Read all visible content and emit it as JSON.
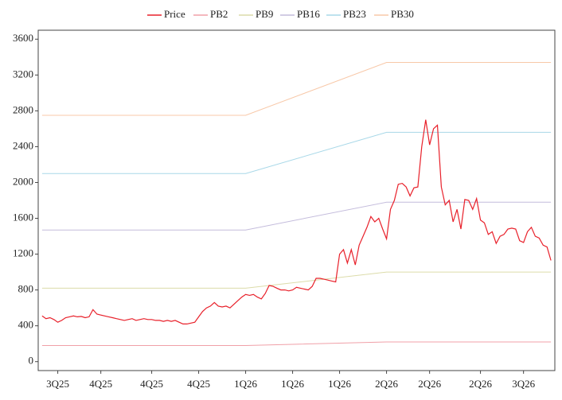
{
  "chart_data": {
    "type": "line",
    "xlim": [
      -1,
      131
    ],
    "xticks": [
      {
        "value": 4,
        "label": "3Q25"
      },
      {
        "value": 15,
        "label": "4Q25"
      },
      {
        "value": 28,
        "label": "4Q25"
      },
      {
        "value": 40,
        "label": "4Q25"
      },
      {
        "value": 52,
        "label": "1Q26"
      },
      {
        "value": 64,
        "label": "1Q26"
      },
      {
        "value": 76,
        "label": "1Q26"
      },
      {
        "value": 88,
        "label": "2Q26"
      },
      {
        "value": 99,
        "label": "2Q26"
      },
      {
        "value": 112,
        "label": "2Q26"
      },
      {
        "value": 123,
        "label": "3Q26"
      }
    ],
    "ylim": [
      -100,
      3700
    ],
    "yticks": [
      0,
      400,
      800,
      1200,
      1600,
      2000,
      2400,
      2800,
      3200,
      3600
    ],
    "legend": "top",
    "series": [
      {
        "name": "Price",
        "color": "#e8202a",
        "x": [
          0,
          1,
          2,
          3,
          4,
          5,
          6,
          7,
          8,
          9,
          10,
          11,
          12,
          13,
          14,
          15,
          16,
          17,
          18,
          19,
          20,
          21,
          22,
          23,
          24,
          25,
          26,
          27,
          28,
          29,
          30,
          31,
          32,
          33,
          34,
          35,
          36,
          37,
          38,
          39,
          40,
          41,
          42,
          43,
          44,
          45,
          46,
          47,
          48,
          49,
          50,
          51,
          52,
          53,
          54,
          55,
          56,
          57,
          58,
          59,
          60,
          61,
          62,
          63,
          64,
          65,
          66,
          67,
          68,
          69,
          70,
          71,
          72,
          73,
          74,
          75,
          76,
          77,
          78,
          79,
          80,
          81,
          82,
          83,
          84,
          85,
          86,
          87,
          88,
          89,
          90,
          91,
          92,
          93,
          94,
          95,
          96,
          97,
          98,
          99,
          100,
          101,
          102,
          103,
          104,
          105,
          106,
          107,
          108,
          109,
          110,
          111,
          112,
          113,
          114,
          115,
          116,
          117,
          118,
          119,
          120,
          121,
          122,
          123,
          124,
          125,
          126,
          127,
          128,
          129,
          130
        ],
        "values": [
          510,
          480,
          490,
          470,
          440,
          460,
          490,
          500,
          510,
          500,
          505,
          490,
          500,
          580,
          530,
          520,
          510,
          500,
          490,
          480,
          470,
          460,
          470,
          480,
          460,
          470,
          480,
          470,
          470,
          460,
          460,
          450,
          460,
          450,
          460,
          440,
          420,
          420,
          430,
          440,
          500,
          560,
          600,
          620,
          660,
          620,
          610,
          620,
          600,
          640,
          680,
          720,
          750,
          740,
          750,
          720,
          700,
          760,
          850,
          840,
          820,
          800,
          800,
          790,
          800,
          830,
          820,
          810,
          800,
          840,
          930,
          930,
          920,
          910,
          900,
          890,
          1200,
          1250,
          1100,
          1250,
          1080,
          1300,
          1400,
          1500,
          1620,
          1560,
          1600,
          1480,
          1370,
          1700,
          1800,
          1980,
          1990,
          1950,
          1850,
          1940,
          1950,
          2400,
          2700,
          2420,
          2600,
          2640,
          1950,
          1750,
          1800,
          1560,
          1700,
          1480,
          1810,
          1800,
          1700,
          1820,
          1580,
          1550,
          1420,
          1450,
          1320,
          1400,
          1420,
          1480,
          1490,
          1480,
          1350,
          1330,
          1450,
          1500,
          1400,
          1380,
          1300,
          1280,
          1130
        ]
      },
      {
        "name": "PB2",
        "color": "#f0a0a8",
        "x": [
          0,
          52,
          88,
          130
        ],
        "values": [
          180,
          180,
          220,
          220
        ]
      },
      {
        "name": "PB9",
        "color": "#dcdcaa",
        "x": [
          0,
          52,
          88,
          130
        ],
        "values": [
          820,
          820,
          1000,
          1000
        ]
      },
      {
        "name": "PB16",
        "color": "#c4bcdc",
        "x": [
          0,
          52,
          88,
          130
        ],
        "values": [
          1470,
          1470,
          1780,
          1780
        ]
      },
      {
        "name": "PB23",
        "color": "#a8d8e8",
        "x": [
          0,
          52,
          88,
          130
        ],
        "values": [
          2100,
          2100,
          2560,
          2560
        ]
      },
      {
        "name": "PB30",
        "color": "#f8c8a8",
        "x": [
          0,
          52,
          88,
          130
        ],
        "values": [
          2750,
          2750,
          3340,
          3340
        ]
      }
    ]
  }
}
